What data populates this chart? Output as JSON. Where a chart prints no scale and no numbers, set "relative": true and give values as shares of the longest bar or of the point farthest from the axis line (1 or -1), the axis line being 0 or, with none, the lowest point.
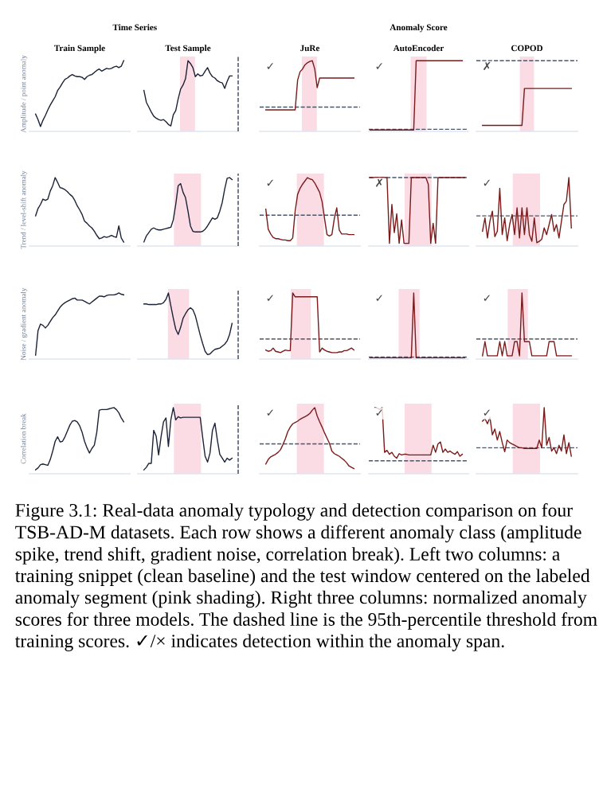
{
  "chart_data": [
    {
      "type": "line",
      "relative": true,
      "title": "Train Sample",
      "ylabel": "Amplitude / point anomaly",
      "annotations": [
        "Time Series"
      ],
      "categories": [
        null,
        null,
        null,
        null,
        null,
        null,
        null,
        null,
        null,
        null,
        null,
        null,
        null,
        null,
        null,
        null,
        null,
        null,
        null,
        null,
        null,
        null,
        null,
        null,
        null,
        null,
        null,
        null,
        null,
        null,
        null,
        null,
        null,
        null,
        null,
        null,
        null,
        null,
        null,
        null,
        null
      ],
      "series": [
        {
          "color": "#1b2236",
          "values": [
            null,
            null,
            0.23,
            0.15,
            0.05,
            0.14,
            0.21,
            0.29,
            0.36,
            0.42,
            0.48,
            0.57,
            0.62,
            0.68,
            0.73,
            0.75,
            0.78,
            0.8,
            0.78,
            0.77,
            0.77,
            0.76,
            0.73,
            0.77,
            0.79,
            0.8,
            0.83,
            0.86,
            0.88,
            0.85,
            0.87,
            0.89,
            0.88,
            0.89,
            0.91,
            0.92,
            0.9,
            0.92,
            1.0,
            null,
            null
          ]
        }
      ]
    },
    {
      "type": "line",
      "relative": true,
      "title": "Test Sample",
      "categories": [
        null,
        null,
        null,
        null,
        null,
        null,
        null,
        null,
        null,
        null,
        null,
        null,
        null,
        null,
        null,
        null,
        null,
        null,
        null,
        null,
        null,
        null,
        null,
        null,
        null,
        null,
        null,
        null,
        null,
        null,
        null,
        null,
        null,
        null,
        null,
        null,
        null,
        null,
        null,
        null,
        null
      ],
      "series": [
        {
          "color": "#1b2236",
          "values": [
            null,
            null,
            0.57,
            0.4,
            0.33,
            0.26,
            0.2,
            0.17,
            0.15,
            0.14,
            0.15,
            0.12,
            0.08,
            0.06,
            0.22,
            0.28,
            0.45,
            0.59,
            0.65,
            0.74,
            1.0,
            0.96,
            0.9,
            0.77,
            0.81,
            0.78,
            0.79,
            0.85,
            0.9,
            0.82,
            0.77,
            0.75,
            0.71,
            0.69,
            0.68,
            0.6,
            0.7,
            0.78,
            0.78,
            null,
            null
          ]
        }
      ]
    },
    {
      "type": "line",
      "relative": true,
      "title": "JuRe",
      "annotations": [
        {
          "text": "✓"
        }
      ],
      "ref_lines": [
        {
          "axis": "y",
          "value": 0.33,
          "color": "#4a5568",
          "line_style": "dashed"
        }
      ],
      "categories": [
        null,
        null,
        null,
        null,
        null,
        null,
        null,
        null,
        null,
        null,
        null,
        null,
        null,
        null,
        null,
        null,
        null,
        null,
        null,
        null,
        null,
        null,
        null,
        null,
        null,
        null,
        null,
        null,
        null,
        null,
        null,
        null,
        null,
        null,
        null,
        null,
        null,
        null,
        null,
        null,
        null
      ],
      "series": [
        {
          "color": "#7a1a1a",
          "values": [
            null,
            null,
            0.29,
            0.29,
            0.29,
            0.29,
            0.29,
            0.29,
            0.29,
            0.29,
            0.29,
            0.29,
            0.29,
            0.29,
            0.29,
            0.72,
            0.84,
            0.88,
            0.94,
            0.97,
            0.99,
            1.0,
            0.88,
            0.61,
            0.75,
            0.75,
            0.75,
            0.75,
            0.75,
            0.75,
            0.75,
            0.75,
            0.75,
            0.75,
            0.75,
            0.75,
            0.75,
            0.75,
            0.75,
            null,
            null
          ]
        }
      ]
    },
    {
      "type": "line",
      "relative": true,
      "title": "AutoEncoder",
      "annotations": [
        "Anomaly Score",
        {
          "text": "✓"
        }
      ],
      "ref_lines": [
        {
          "axis": "y",
          "value": 0.01,
          "color": "#4a5568",
          "line_style": "dashed"
        }
      ],
      "categories": [
        null,
        null,
        null,
        null,
        null,
        null,
        null,
        null,
        null,
        null,
        null,
        null,
        null,
        null,
        null,
        null,
        null,
        null,
        null,
        null,
        null,
        null,
        null,
        null,
        null,
        null,
        null,
        null,
        null,
        null,
        null,
        null,
        null,
        null,
        null,
        null,
        null,
        null,
        null,
        null,
        null
      ],
      "series": [
        {
          "color": "#7a1a1a",
          "values": [
            0,
            0,
            0,
            0,
            0,
            0,
            0,
            0,
            0,
            0,
            0,
            0,
            0,
            0,
            0,
            0,
            0,
            0,
            0,
            1,
            1,
            1,
            1,
            1,
            1,
            1,
            1,
            1,
            1,
            1,
            1,
            1,
            1,
            1,
            1,
            1,
            1,
            1,
            1,
            null,
            null
          ]
        }
      ]
    },
    {
      "type": "line",
      "relative": true,
      "title": "COPOD",
      "annotations": [
        {
          "text": "✗"
        }
      ],
      "ref_lines": [
        {
          "axis": "y",
          "value": 1.67,
          "color": "#4a5568",
          "line_style": "dashed"
        }
      ],
      "categories": [
        null,
        null,
        null,
        null,
        null,
        null,
        null,
        null,
        null,
        null,
        null,
        null,
        null,
        null,
        null,
        null,
        null,
        null,
        null,
        null,
        null,
        null,
        null,
        null,
        null,
        null,
        null,
        null,
        null,
        null,
        null,
        null,
        null,
        null,
        null,
        null,
        null,
        null,
        null,
        null,
        null
      ],
      "series": [
        {
          "color": "#7a1a1a",
          "values": [
            null,
            null,
            0.11,
            0.11,
            0.11,
            0.11,
            0.11,
            0.11,
            0.11,
            0.11,
            0.11,
            0.11,
            0.11,
            0.11,
            0.11,
            0.11,
            0.11,
            0.11,
            0.11,
            1,
            1,
            1,
            1,
            1,
            1,
            1,
            1,
            1,
            1,
            1,
            1,
            1,
            1,
            1,
            1,
            1,
            1,
            1,
            1,
            null,
            null
          ]
        }
      ]
    },
    {
      "type": "line",
      "relative": true,
      "ylabel": "Trend / level-shift anomaly",
      "categories": [
        null,
        null,
        null,
        null,
        null,
        null,
        null,
        null,
        null,
        null,
        null,
        null,
        null,
        null,
        null,
        null,
        null,
        null,
        null,
        null,
        null,
        null,
        null,
        null,
        null,
        null,
        null,
        null,
        null,
        null,
        null,
        null,
        null,
        null,
        null,
        null,
        null,
        null,
        null,
        null,
        null
      ],
      "series": [
        {
          "color": "#1b2236",
          "values": [
            null,
            null,
            0.43,
            0.54,
            0.6,
            0.68,
            0.66,
            0.68,
            0.8,
            0.88,
            1.0,
            0.93,
            0.85,
            0.84,
            0.82,
            0.79,
            0.75,
            0.72,
            0.66,
            0.58,
            0.52,
            0.45,
            0.35,
            0.32,
            0.28,
            0.25,
            0.2,
            0.14,
            0.09,
            0.1,
            0.12,
            0.11,
            0.12,
            0.14,
            0.12,
            0.11,
            0.28,
            0.1,
            0.04,
            null,
            null
          ]
        }
      ]
    },
    {
      "type": "line",
      "relative": true,
      "categories": [
        null,
        null,
        null,
        null,
        null,
        null,
        null,
        null,
        null,
        null,
        null,
        null,
        null,
        null,
        null,
        null,
        null,
        null,
        null,
        null,
        null,
        null,
        null,
        null,
        null,
        null,
        null,
        null,
        null,
        null,
        null,
        null,
        null,
        null,
        null,
        null,
        null,
        null,
        null,
        null,
        null
      ],
      "series": [
        {
          "color": "#1b2236",
          "values": [
            null,
            null,
            0.04,
            0.13,
            0.18,
            0.23,
            0.25,
            0.23,
            0.22,
            0.22,
            0.23,
            0.24,
            0.25,
            0.26,
            0.37,
            0.6,
            0.88,
            0.91,
            0.78,
            0.7,
            0.5,
            0.28,
            0.2,
            0.19,
            0.19,
            0.19,
            0.2,
            0.23,
            0.28,
            0.34,
            0.4,
            0.38,
            0.4,
            0.5,
            0.63,
            0.83,
            0.99,
            1.0,
            0.97,
            null,
            null
          ]
        }
      ]
    },
    {
      "type": "line",
      "relative": true,
      "annotations": [
        {
          "text": "✓"
        }
      ],
      "ref_lines": [
        {
          "axis": "y",
          "value": 0.44,
          "color": "#4a5568",
          "line_style": "dashed"
        }
      ],
      "categories": [
        null,
        null,
        null,
        null,
        null,
        null,
        null,
        null,
        null,
        null,
        null,
        null,
        null,
        null,
        null,
        null,
        null,
        null,
        null,
        null,
        null,
        null,
        null,
        null,
        null,
        null,
        null,
        null,
        null,
        null,
        null,
        null,
        null,
        null,
        null,
        null,
        null,
        null,
        null,
        null,
        null
      ],
      "series": [
        {
          "color": "#7a1a1a",
          "values": [
            null,
            null,
            0.53,
            0.23,
            0.16,
            0.11,
            0.09,
            0.09,
            0.08,
            0.07,
            0.07,
            0.06,
            0.06,
            0.1,
            0.5,
            0.75,
            0.84,
            0.9,
            0.95,
            1.0,
            0.98,
            0.97,
            0.92,
            0.85,
            0.78,
            0.64,
            0.39,
            0.15,
            0.13,
            0.15,
            0.39,
            0.55,
            0.22,
            0.16,
            0.16,
            0.16,
            0.15,
            0.15,
            0.15,
            null,
            null
          ]
        }
      ]
    },
    {
      "type": "line",
      "relative": true,
      "annotations": [
        {
          "text": "✗"
        }
      ],
      "ref_lines": [
        {
          "axis": "y",
          "value": 1.0,
          "color": "#4a5568",
          "line_style": "dashed"
        }
      ],
      "categories": [
        null,
        null,
        null,
        null,
        null,
        null,
        null,
        null,
        null,
        null,
        null,
        null,
        null,
        null,
        null,
        null,
        null,
        null,
        null,
        null,
        null,
        null,
        null,
        null,
        null,
        null,
        null,
        null,
        null,
        null,
        null,
        null,
        null,
        null,
        null,
        null,
        null,
        null,
        null,
        null,
        null
      ],
      "series": [
        {
          "color": "#7a1a1a",
          "values": [
            1,
            1,
            1,
            1,
            1,
            1,
            1,
            1,
            0.02,
            0.6,
            0.18,
            0.46,
            0.02,
            0.37,
            0.02,
            0.02,
            0.02,
            1,
            1,
            1,
            1,
            1,
            1,
            1,
            0.9,
            0.02,
            0.32,
            0.02,
            1,
            1,
            1,
            1,
            1,
            1,
            1,
            1,
            1,
            1,
            1,
            1,
            null
          ]
        }
      ]
    },
    {
      "type": "line",
      "relative": true,
      "annotations": [
        {
          "text": "✓"
        }
      ],
      "ref_lines": [
        {
          "axis": "y",
          "value": 0.43,
          "color": "#4a5568",
          "line_style": "dashed"
        }
      ],
      "categories": [
        null,
        null,
        null,
        null,
        null,
        null,
        null,
        null,
        null,
        null,
        null,
        null,
        null,
        null,
        null,
        null,
        null,
        null,
        null,
        null,
        null,
        null,
        null,
        null,
        null,
        null,
        null,
        null,
        null,
        null,
        null,
        null,
        null,
        null,
        null,
        null,
        null,
        null,
        null,
        null,
        null
      ],
      "series": [
        {
          "color": "#7a1a1a",
          "values": [
            null,
            null,
            0.2,
            0.4,
            0.1,
            0.35,
            0.5,
            0.12,
            0.2,
            0.84,
            0.15,
            0.4,
            0.06,
            0.3,
            0.45,
            0.15,
            0.55,
            0.1,
            0.55,
            0.15,
            0.55,
            0.15,
            0.05,
            0.4,
            0.03,
            0.05,
            0.08,
            0.25,
            0.15,
            0.3,
            0.45,
            0.2,
            0.3,
            0.1,
            0.35,
            0.6,
            0.65,
            1.0,
            0.25,
            null,
            null
          ]
        }
      ]
    },
    {
      "type": "line",
      "relative": true,
      "ylabel": "Noise / gradient anomaly",
      "categories": [
        null,
        null,
        null,
        null,
        null,
        null,
        null,
        null,
        null,
        null,
        null,
        null,
        null,
        null,
        null,
        null,
        null,
        null,
        null,
        null,
        null,
        null,
        null,
        null,
        null,
        null,
        null,
        null,
        null,
        null,
        null,
        null,
        null,
        null,
        null,
        null,
        null,
        null,
        null,
        null,
        null
      ],
      "series": [
        {
          "color": "#1b2236",
          "values": [
            null,
            null,
            0.04,
            0.42,
            0.52,
            0.5,
            0.46,
            0.5,
            0.56,
            0.62,
            0.66,
            0.72,
            0.78,
            0.82,
            0.85,
            0.87,
            0.89,
            0.91,
            0.92,
            0.89,
            0.89,
            0.89,
            0.87,
            0.85,
            0.83,
            0.86,
            0.89,
            0.92,
            0.95,
            0.95,
            0.94,
            0.96,
            0.97,
            0.97,
            0.97,
            0.98,
            1.0,
            0.98,
            0.97,
            null,
            null
          ]
        }
      ]
    },
    {
      "type": "line",
      "relative": true,
      "categories": [
        null,
        null,
        null,
        null,
        null,
        null,
        null,
        null,
        null,
        null,
        null,
        null,
        null,
        null,
        null,
        null,
        null,
        null,
        null,
        null,
        null,
        null,
        null,
        null,
        null,
        null,
        null,
        null,
        null,
        null,
        null,
        null,
        null,
        null,
        null,
        null,
        null,
        null,
        null,
        null,
        null
      ],
      "series": [
        {
          "color": "#1b2236",
          "values": [
            null,
            null,
            0.83,
            0.83,
            0.82,
            0.82,
            0.82,
            0.82,
            0.83,
            0.83,
            0.85,
            0.9,
            1.0,
            0.8,
            0.61,
            0.44,
            0.36,
            0.47,
            0.61,
            0.68,
            0.74,
            0.77,
            0.74,
            0.65,
            0.5,
            0.35,
            0.22,
            0.1,
            0.05,
            0.06,
            0.1,
            0.13,
            0.14,
            0.15,
            0.18,
            0.21,
            0.26,
            0.36,
            0.53,
            null,
            null
          ]
        }
      ]
    },
    {
      "type": "line",
      "relative": true,
      "annotations": [
        {
          "text": "✓"
        }
      ],
      "ref_lines": [
        {
          "axis": "y",
          "value": 0.29,
          "color": "#4a5568",
          "line_style": "dashed"
        }
      ],
      "categories": [
        null,
        null,
        null,
        null,
        null,
        null,
        null,
        null,
        null,
        null,
        null,
        null,
        null,
        null,
        null,
        null,
        null,
        null,
        null,
        null,
        null,
        null,
        null,
        null,
        null,
        null,
        null,
        null,
        null,
        null,
        null,
        null,
        null,
        null,
        null,
        null,
        null,
        null,
        null,
        null,
        null
      ],
      "series": [
        {
          "color": "#7a1a1a",
          "values": [
            null,
            null,
            0.12,
            0.1,
            0.11,
            0.15,
            0.1,
            0.09,
            0.08,
            0.1,
            0.12,
            0.11,
            0.11,
            1.0,
            0.94,
            0.94,
            0.94,
            0.94,
            0.94,
            0.94,
            0.94,
            0.94,
            0.94,
            0.94,
            0.09,
            0.15,
            0.12,
            0.1,
            0.09,
            0.08,
            0.08,
            0.08,
            0.09,
            0.09,
            0.11,
            0.11,
            0.13,
            0.15,
            0.12,
            null,
            null
          ]
        }
      ]
    },
    {
      "type": "line",
      "relative": true,
      "annotations": [
        {
          "text": "✓"
        }
      ],
      "ref_lines": [
        {
          "axis": "y",
          "value": 0.01,
          "color": "#4a5568",
          "line_style": "dashed"
        }
      ],
      "categories": [
        null,
        null,
        null,
        null,
        null,
        null,
        null,
        null,
        null,
        null,
        null,
        null,
        null,
        null,
        null,
        null,
        null,
        null,
        null,
        null,
        null,
        null,
        null,
        null,
        null,
        null,
        null,
        null,
        null,
        null,
        null,
        null,
        null,
        null,
        null,
        null,
        null,
        null,
        null,
        null,
        null
      ],
      "series": [
        {
          "color": "#7a1a1a",
          "values": [
            0,
            0,
            0,
            0,
            0,
            0,
            0,
            0,
            0,
            0,
            0,
            0,
            0,
            0,
            0,
            0,
            0,
            0,
            1,
            0,
            0,
            0,
            0,
            0,
            0,
            0,
            0,
            0,
            0,
            0,
            0,
            0,
            0,
            0,
            0,
            0,
            0,
            0,
            0,
            0,
            null
          ]
        }
      ]
    },
    {
      "type": "line",
      "relative": true,
      "annotations": [
        {
          "text": "✓"
        }
      ],
      "ref_lines": [
        {
          "axis": "y",
          "value": 0.29,
          "color": "#4a5568",
          "line_style": "dashed"
        }
      ],
      "categories": [
        null,
        null,
        null,
        null,
        null,
        null,
        null,
        null,
        null,
        null,
        null,
        null,
        null,
        null,
        null,
        null,
        null,
        null,
        null,
        null,
        null,
        null,
        null,
        null,
        null,
        null,
        null,
        null,
        null,
        null,
        null,
        null,
        null,
        null,
        null,
        null,
        null,
        null,
        null,
        null,
        null
      ],
      "series": [
        {
          "color": "#7a1a1a",
          "values": [
            null,
            null,
            0.03,
            0.25,
            0.03,
            0.03,
            0.03,
            0.03,
            0.03,
            0.25,
            0.03,
            0.25,
            0.03,
            0.03,
            0.03,
            0.25,
            0.25,
            0.03,
            1.0,
            0.25,
            0.25,
            0.25,
            0.03,
            0.03,
            0.03,
            0.03,
            0.03,
            0.03,
            0.03,
            0.25,
            0.25,
            0.25,
            0.03,
            0.03,
            0.03,
            0.03,
            0.03,
            0.03,
            0.03,
            null,
            null
          ]
        }
      ]
    },
    {
      "type": "line",
      "relative": true,
      "ylabel": "Correlation break",
      "categories": [
        null,
        null,
        null,
        null,
        null,
        null,
        null,
        null,
        null,
        null,
        null,
        null,
        null,
        null,
        null,
        null,
        null,
        null,
        null,
        null,
        null,
        null,
        null,
        null,
        null,
        null,
        null,
        null,
        null,
        null,
        null,
        null,
        null,
        null,
        null,
        null,
        null,
        null,
        null,
        null,
        null
      ],
      "series": [
        {
          "color": "#1b2236",
          "values": [
            null,
            null,
            0.04,
            0.07,
            0.12,
            0.13,
            0.12,
            0.11,
            0.2,
            0.33,
            0.48,
            0.55,
            0.47,
            0.48,
            0.55,
            0.64,
            0.73,
            0.79,
            0.8,
            0.78,
            0.72,
            0.62,
            0.48,
            0.38,
            0.3,
            0.37,
            0.42,
            0.62,
            0.96,
            0.97,
            0.97,
            0.97,
            0.98,
            0.99,
            1.0,
            0.97,
            0.92,
            0.84,
            0.78,
            null,
            null
          ]
        }
      ]
    },
    {
      "type": "line",
      "relative": true,
      "categories": [
        null,
        null,
        null,
        null,
        null,
        null,
        null,
        null,
        null,
        null,
        null,
        null,
        null,
        null,
        null,
        null,
        null,
        null,
        null,
        null,
        null,
        null,
        null,
        null,
        null,
        null,
        null,
        null,
        null,
        null,
        null,
        null,
        null,
        null,
        null,
        null,
        null,
        null,
        null,
        null,
        null
      ],
      "series": [
        {
          "color": "#1b2236",
          "values": [
            null,
            null,
            0.04,
            0.08,
            0.14,
            0.14,
            0.65,
            0.56,
            0.27,
            0.55,
            0.78,
            0.84,
            0.4,
            0.81,
            1.0,
            0.81,
            0.86,
            0.84,
            0.85,
            0.85,
            0.85,
            0.85,
            0.85,
            0.85,
            0.85,
            0.85,
            0.54,
            0.25,
            0.16,
            0.3,
            0.65,
            0.76,
            0.5,
            0.28,
            0.22,
            0.16,
            0.22,
            0.19,
            0.22,
            null,
            null
          ]
        }
      ]
    },
    {
      "type": "line",
      "relative": true,
      "annotations": [
        {
          "text": "✓"
        }
      ],
      "ref_lines": [
        {
          "axis": "y",
          "value": 0.44,
          "color": "#4a5568",
          "line_style": "dashed"
        }
      ],
      "categories": [
        null,
        null,
        null,
        null,
        null,
        null,
        null,
        null,
        null,
        null,
        null,
        null,
        null,
        null,
        null,
        null,
        null,
        null,
        null,
        null,
        null,
        null,
        null,
        null,
        null,
        null,
        null,
        null,
        null,
        null,
        null,
        null,
        null,
        null,
        null,
        null,
        null,
        null,
        null,
        null,
        null
      ],
      "series": [
        {
          "color": "#7a1a1a",
          "values": [
            null,
            null,
            0.13,
            0.2,
            0.24,
            0.26,
            0.28,
            0.31,
            0.35,
            0.43,
            0.52,
            0.63,
            0.7,
            0.75,
            0.77,
            0.79,
            0.82,
            0.84,
            0.86,
            0.88,
            0.91,
            0.96,
            1.0,
            0.87,
            0.78,
            0.7,
            0.61,
            0.53,
            0.45,
            0.33,
            0.29,
            0.27,
            0.25,
            0.22,
            0.19,
            0.15,
            0.1,
            0.08,
            0.06,
            null,
            null
          ]
        }
      ]
    },
    {
      "type": "line",
      "relative": true,
      "annotations": [
        {
          "text": "✓"
        }
      ],
      "ref_lines": [
        {
          "axis": "y",
          "value": 0.18,
          "color": "#4a5568",
          "line_style": "dashed"
        }
      ],
      "categories": [
        null,
        null,
        null,
        null,
        null,
        null,
        null,
        null,
        null,
        null,
        null,
        null,
        null,
        null,
        null,
        null,
        null,
        null,
        null,
        null,
        null,
        null,
        null,
        null,
        null,
        null,
        null,
        null,
        null,
        null,
        null,
        null,
        null,
        null,
        null,
        null,
        null,
        null,
        null,
        null,
        null
      ],
      "series": [
        {
          "color": "#7a1a1a",
          "values": [
            null,
            null,
            1.0,
            0.99,
            0.97,
            1.0,
            0.31,
            0.34,
            0.28,
            0.31,
            0.25,
            0.22,
            0.29,
            0.27,
            0.28,
            0.28,
            0.27,
            0.27,
            0.27,
            0.27,
            0.27,
            0.27,
            0.27,
            0.27,
            0.27,
            0.27,
            0.42,
            0.31,
            0.44,
            0.47,
            0.31,
            0.36,
            0.31,
            0.33,
            0.3,
            0.28,
            0.32,
            0.25,
            0.28,
            null,
            null
          ]
        }
      ]
    },
    {
      "type": "line",
      "relative": true,
      "annotations": [
        {
          "text": "✓"
        },
        "Figure 3.1: Real-data anomaly typology and detection comparison on four TSB-AD-M datasets. Each row shows a different anomaly class (amplitude spike, trend shift, gradient noise, correlation break). Left two columns: a training snippet (clean baseline) and the test window centered on the labeled anomaly segment (pink shading). Right three columns: normalized anomaly scores for three models. The dashed line is the 95th-percentile threshold from training scores. ✓/× indicates detection within the anomaly span."
      ],
      "ref_lines": [
        {
          "axis": "y",
          "value": 0.38,
          "color": "#4a5568",
          "line_style": "dashed"
        }
      ],
      "categories": [
        null,
        null,
        null,
        null,
        null,
        null,
        null,
        null,
        null,
        null,
        null,
        null,
        null,
        null,
        null,
        null,
        null,
        null,
        null,
        null,
        null,
        null,
        null,
        null,
        null,
        null,
        null,
        null,
        null,
        null,
        null,
        null,
        null,
        null,
        null,
        null,
        null,
        null,
        null,
        null,
        null
      ],
      "series": [
        {
          "color": "#7a1a1a",
          "values": [
            null,
            null,
            0.79,
            0.83,
            0.75,
            0.85,
            0.58,
            0.67,
            0.5,
            0.63,
            0.46,
            0.32,
            0.5,
            0.46,
            0.44,
            0.42,
            0.4,
            0.38,
            0.38,
            0.37,
            0.37,
            0.37,
            0.37,
            0.37,
            0.37,
            0.5,
            0.38,
            1.0,
            0.42,
            0.54,
            0.33,
            0.38,
            0.29,
            0.42,
            0.33,
            0.58,
            0.29,
            0.46,
            0.25,
            null,
            null
          ]
        }
      ]
    }
  ]
}
